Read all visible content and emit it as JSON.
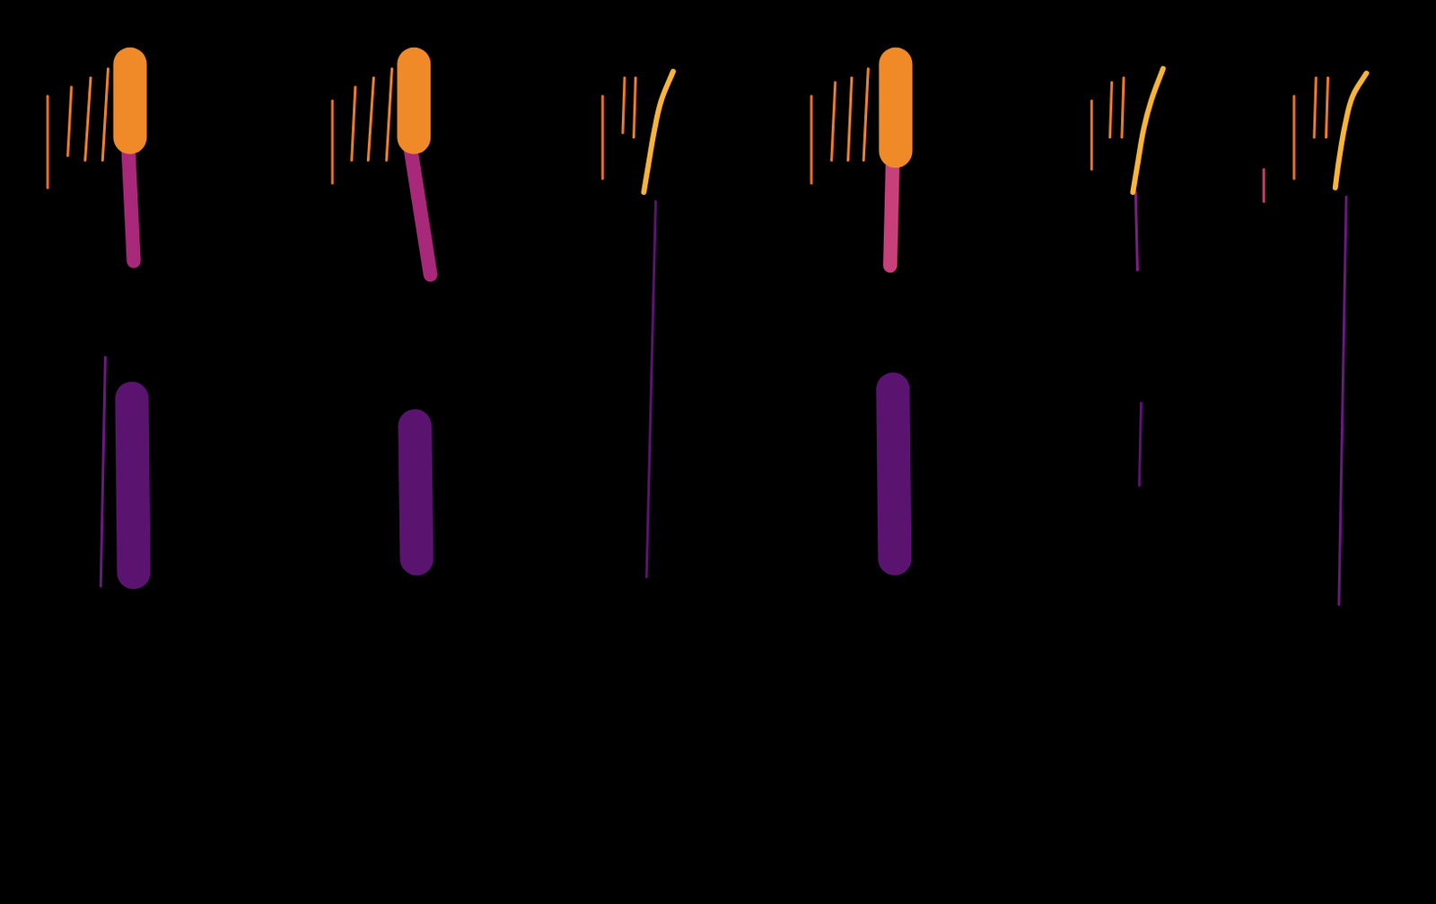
{
  "chart_data": {
    "type": "spectrogram",
    "xlim": [
      0,
      1568
    ],
    "ylim": [
      0,
      987
    ],
    "grid": false,
    "tick_labels": false,
    "series": [
      {
        "color": "#e8702a",
        "line_style": "thin",
        "x": [
          52,
          52
        ],
        "values": [
          882,
          782
        ]
      },
      {
        "color": "#ee7a2a",
        "line_style": "thin",
        "x": [
          78,
          74
        ],
        "values": [
          892,
          817
        ]
      },
      {
        "color": "#f0822a",
        "line_style": "thin",
        "x": [
          99,
          93
        ],
        "values": [
          902,
          812
        ]
      },
      {
        "color": "#f0822a",
        "line_style": "thin",
        "x": [
          118,
          112
        ],
        "values": [
          912,
          812
        ]
      },
      {
        "color": "#f08a28",
        "line_style": "wide",
        "x": [
          142,
          142
        ],
        "values": [
          917,
          837
        ]
      },
      {
        "color": "#fdc040",
        "line_style": "thick",
        "x": [
          140,
          144
        ],
        "values": [
          907,
          847
        ]
      },
      {
        "color": "#a8287a",
        "line_style": "thick",
        "x": [
          140,
          146
        ],
        "values": [
          827,
          702
        ]
      },
      {
        "color": "#5a1470",
        "line_style": "wide",
        "x": [
          144,
          146
        ],
        "values": [
          552,
          362
        ]
      },
      {
        "color": "#6a1a80",
        "line_style": "thin",
        "x": [
          115,
          110
        ],
        "values": [
          597,
          347
        ]
      },
      {
        "color": "#e8702a",
        "line_style": "thin",
        "x": [
          363,
          363
        ],
        "values": [
          877,
          787
        ]
      },
      {
        "color": "#ee7a2a",
        "line_style": "thin",
        "x": [
          388,
          384
        ],
        "values": [
          892,
          812
        ]
      },
      {
        "color": "#f0822a",
        "line_style": "thin",
        "x": [
          408,
          402
        ],
        "values": [
          902,
          812
        ]
      },
      {
        "color": "#f0822a",
        "line_style": "thin",
        "x": [
          428,
          422
        ],
        "values": [
          912,
          812
        ]
      },
      {
        "color": "#f08a28",
        "line_style": "wide",
        "x": [
          452,
          452
        ],
        "values": [
          917,
          837
        ]
      },
      {
        "color": "#fdc040",
        "line_style": "thick",
        "x": [
          450,
          454
        ],
        "values": [
          907,
          847
        ]
      },
      {
        "color": "#a8287a",
        "line_style": "thick",
        "x": [
          448,
          470
        ],
        "values": [
          827,
          687
        ]
      },
      {
        "color": "#5a1470",
        "line_style": "wide",
        "x": [
          453,
          455
        ],
        "values": [
          522,
          377
        ]
      },
      {
        "color": "#e8702a",
        "line_style": "thin",
        "x": [
          658,
          658
        ],
        "values": [
          882,
          792
        ]
      },
      {
        "color": "#ee7a2a",
        "line_style": "thin",
        "x": [
          682,
          680
        ],
        "values": [
          902,
          842
        ]
      },
      {
        "color": "#ee7a2a",
        "line_style": "thin",
        "x": [
          694,
          692
        ],
        "values": [
          902,
          837
        ]
      },
      {
        "color": "#f9b43a",
        "line_style": "medium",
        "x": [
          703,
          708,
          715,
          722,
          735
        ],
        "values": [
          777,
          807,
          847,
          877,
          909
        ]
      },
      {
        "color": "#5a1470",
        "line_style": "thin",
        "x": [
          716,
          706
        ],
        "values": [
          767,
          357
        ]
      },
      {
        "color": "#e8702a",
        "line_style": "thin",
        "x": [
          886,
          886
        ],
        "values": [
          882,
          787
        ]
      },
      {
        "color": "#ee7a2a",
        "line_style": "thin",
        "x": [
          912,
          908
        ],
        "values": [
          897,
          812
        ]
      },
      {
        "color": "#f0822a",
        "line_style": "thin",
        "x": [
          930,
          926
        ],
        "values": [
          902,
          812
        ]
      },
      {
        "color": "#f0822a",
        "line_style": "thin",
        "x": [
          948,
          943
        ],
        "values": [
          912,
          812
        ]
      },
      {
        "color": "#f08a28",
        "line_style": "wide",
        "x": [
          978,
          978
        ],
        "values": [
          917,
          822
        ]
      },
      {
        "color": "#fdc040",
        "line_style": "thick",
        "x": [
          976,
          980
        ],
        "values": [
          907,
          842
        ]
      },
      {
        "color": "#c8407a",
        "line_style": "thick",
        "x": [
          975,
          972
        ],
        "values": [
          822,
          697
        ]
      },
      {
        "color": "#5a1470",
        "line_style": "wide",
        "x": [
          975,
          977
        ],
        "values": [
          562,
          377
        ]
      },
      {
        "color": "#e8702a",
        "line_style": "thin",
        "x": [
          1192,
          1192
        ],
        "values": [
          877,
          802
        ]
      },
      {
        "color": "#ee7a2a",
        "line_style": "thin",
        "x": [
          1214,
          1212
        ],
        "values": [
          897,
          837
        ]
      },
      {
        "color": "#ee7a2a",
        "line_style": "thin",
        "x": [
          1227,
          1225
        ],
        "values": [
          902,
          837
        ]
      },
      {
        "color": "#f9b43a",
        "line_style": "medium",
        "x": [
          1237,
          1242,
          1249,
          1257,
          1270
        ],
        "values": [
          777,
          807,
          847,
          877,
          912
        ]
      },
      {
        "color": "#7a2080",
        "line_style": "thin",
        "x": [
          1240,
          1242
        ],
        "values": [
          777,
          692
        ]
      },
      {
        "color": "#5a1470",
        "line_style": "thin",
        "x": [
          1246,
          1244
        ],
        "values": [
          547,
          457
        ]
      },
      {
        "color": "#c04070",
        "line_style": "thin",
        "x": [
          1380,
          1380
        ],
        "values": [
          802,
          767
        ]
      },
      {
        "color": "#e8702a",
        "line_style": "thin",
        "x": [
          1413,
          1413
        ],
        "values": [
          882,
          792
        ]
      },
      {
        "color": "#ee7a2a",
        "line_style": "thin",
        "x": [
          1437,
          1435
        ],
        "values": [
          902,
          837
        ]
      },
      {
        "color": "#ee7a2a",
        "line_style": "thin",
        "x": [
          1450,
          1448
        ],
        "values": [
          902,
          837
        ]
      },
      {
        "color": "#f9b43a",
        "line_style": "medium",
        "x": [
          1458,
          1462,
          1469,
          1477,
          1492
        ],
        "values": [
          782,
          812,
          852,
          882,
          907
        ]
      },
      {
        "color": "#6a1a80",
        "line_style": "thin",
        "x": [
          1470,
          1462
        ],
        "values": [
          772,
          327
        ]
      }
    ]
  }
}
